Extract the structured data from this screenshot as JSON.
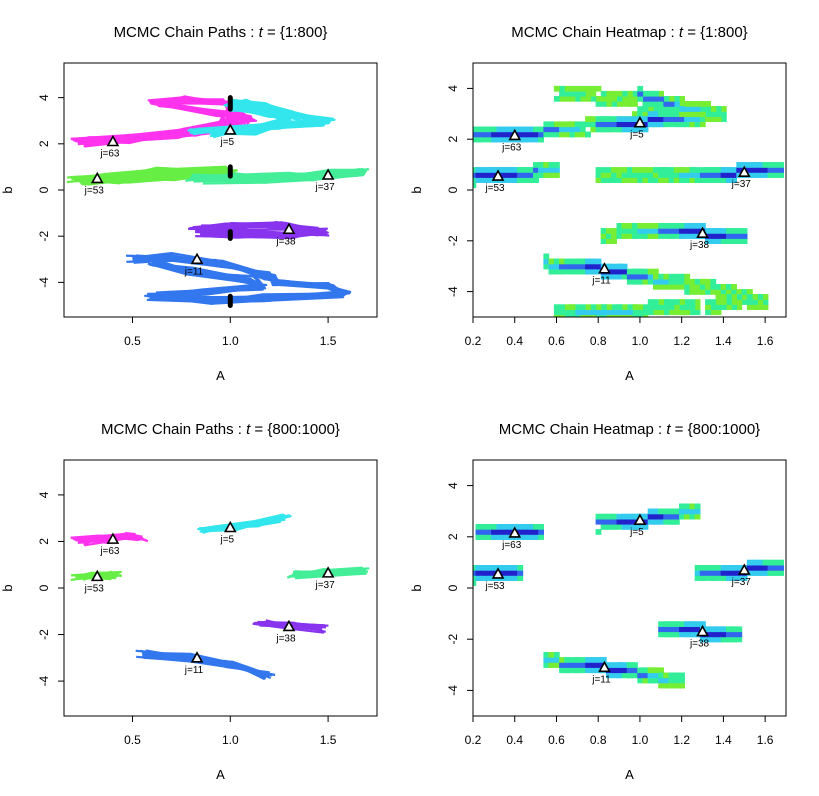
{
  "chart_data": [
    {
      "type": "scatter",
      "title_prefix": "MCMC Chain Paths : ",
      "title_var": "t",
      "title_suffix": " = {1:800}",
      "xlabel": "A",
      "ylabel": "b",
      "xlim": [
        0.15,
        1.75
      ],
      "ylim": [
        -5.5,
        5.5
      ],
      "xticks": [
        0.5,
        1.0,
        1.5
      ],
      "xtick_labels": [
        "0.5",
        "1.0",
        "1.5"
      ],
      "yticks": [
        -4,
        -2,
        0,
        2,
        4
      ],
      "ytick_labels": [
        "-4",
        "-2",
        "0",
        "2",
        "4"
      ],
      "series": [
        {
          "name": "j=63",
          "color": "#ff33ee",
          "true_point": [
            0.4,
            2.1
          ],
          "path": [
            [
              0.22,
              2.05
            ],
            [
              0.45,
              2.2
            ],
            [
              0.8,
              2.5
            ],
            [
              1.05,
              2.9
            ],
            [
              1.1,
              3.15
            ],
            [
              0.9,
              3.35
            ],
            [
              0.6,
              3.8
            ],
            [
              0.8,
              3.9
            ],
            [
              1.0,
              3.75
            ],
            [
              1.0,
              3.15
            ],
            [
              0.95,
              2.7
            ],
            [
              0.7,
              2.4
            ],
            [
              0.3,
              2.15
            ]
          ]
        },
        {
          "name": "j=5",
          "color": "#33e6ee",
          "true_point": [
            1.0,
            2.6
          ],
          "path": [
            [
              0.8,
              2.55
            ],
            [
              1.05,
              2.65
            ],
            [
              1.25,
              2.8
            ],
            [
              1.5,
              2.95
            ],
            [
              1.3,
              3.3
            ],
            [
              1.15,
              3.6
            ],
            [
              1.05,
              3.75
            ],
            [
              1.0,
              3.55
            ],
            [
              1.2,
              3.3
            ],
            [
              1.3,
              3.0
            ],
            [
              1.1,
              2.55
            ],
            [
              0.9,
              2.45
            ]
          ]
        },
        {
          "name": "j=53",
          "color": "#66ee44",
          "true_point": [
            0.32,
            0.5
          ],
          "path": [
            [
              0.2,
              0.45
            ],
            [
              0.4,
              0.55
            ],
            [
              0.65,
              0.8
            ],
            [
              0.95,
              0.9
            ],
            [
              1.0,
              0.7
            ],
            [
              0.7,
              0.6
            ],
            [
              0.45,
              0.45
            ],
            [
              0.25,
              0.4
            ]
          ]
        },
        {
          "name": "j=37",
          "color": "#44ee99",
          "true_point": [
            1.5,
            0.65
          ],
          "path": [
            [
              0.8,
              0.5
            ],
            [
              1.05,
              0.55
            ],
            [
              1.3,
              0.62
            ],
            [
              1.55,
              0.7
            ],
            [
              1.68,
              0.75
            ],
            [
              1.45,
              0.55
            ],
            [
              1.15,
              0.45
            ],
            [
              0.85,
              0.45
            ]
          ]
        },
        {
          "name": "j=38",
          "color": "#8833ee",
          "true_point": [
            1.3,
            -1.7
          ],
          "path": [
            [
              0.82,
              -1.7
            ],
            [
              1.0,
              -1.55
            ],
            [
              1.25,
              -1.55
            ],
            [
              1.48,
              -1.8
            ],
            [
              1.3,
              -1.95
            ],
            [
              1.05,
              -1.9
            ],
            [
              0.85,
              -1.85
            ]
          ]
        },
        {
          "name": "j=11",
          "color": "#3377ee",
          "true_point": [
            0.83,
            -3.0
          ],
          "path": [
            [
              0.5,
              -3.0
            ],
            [
              0.7,
              -2.9
            ],
            [
              0.95,
              -3.2
            ],
            [
              1.2,
              -3.7
            ],
            [
              1.25,
              -4.05
            ],
            [
              1.5,
              -4.2
            ],
            [
              1.58,
              -4.5
            ],
            [
              1.2,
              -4.65
            ],
            [
              0.9,
              -4.8
            ],
            [
              0.6,
              -4.6
            ],
            [
              0.85,
              -4.4
            ],
            [
              1.15,
              -4.15
            ],
            [
              1.1,
              -3.9
            ],
            [
              0.8,
              -3.5
            ],
            [
              0.6,
              -3.15
            ]
          ]
        },
        {
          "name": "",
          "color": "#000000",
          "true_point": null,
          "path": [
            [
              1.0,
              4.0
            ],
            [
              1.0,
              3.5
            ],
            [
              1.0,
              1.0
            ],
            [
              1.0,
              0.6
            ],
            [
              1.0,
              -1.8
            ],
            [
              1.0,
              -2.1
            ],
            [
              1.0,
              -4.6
            ],
            [
              1.0,
              -5.0
            ]
          ]
        }
      ]
    },
    {
      "type": "heatmap",
      "title_prefix": "MCMC Chain Heatmap : ",
      "title_var": "t",
      "title_suffix": " = {1:800}",
      "xlabel": "A",
      "ylabel": "b",
      "xlim": [
        0.2,
        1.7
      ],
      "ylim": [
        -5.0,
        5.0
      ],
      "xticks": [
        0.2,
        0.4,
        0.6,
        0.8,
        1.0,
        1.2,
        1.4,
        1.6
      ],
      "xtick_labels": [
        "0.2",
        "0.4",
        "0.6",
        "0.8",
        "1.0",
        "1.2",
        "1.4",
        "1.6"
      ],
      "yticks": [
        -4,
        -2,
        0,
        2,
        4
      ],
      "ytick_labels": [
        "-4",
        "-2",
        "0",
        "2",
        "4"
      ],
      "palette": [
        "#77ee33",
        "#33ee99",
        "#33ccee",
        "#3366ee",
        "#2222cc"
      ],
      "series": [
        {
          "name": "j=63",
          "true_point": [
            0.4,
            2.15
          ],
          "path": [
            [
              0.2,
              2.1
            ],
            [
              0.45,
              2.2
            ],
            [
              0.75,
              2.5
            ],
            [
              1.0,
              2.75
            ],
            [
              1.3,
              3.2
            ],
            [
              0.95,
              3.55
            ],
            [
              0.6,
              3.9
            ]
          ]
        },
        {
          "name": "j=5",
          "true_point": [
            1.0,
            2.65
          ],
          "path": [
            [
              0.8,
              2.55
            ],
            [
              1.05,
              2.7
            ],
            [
              1.25,
              2.85
            ],
            [
              1.4,
              3.0
            ],
            [
              1.2,
              3.3
            ],
            [
              1.0,
              3.7
            ]
          ]
        },
        {
          "name": "j=53",
          "true_point": [
            0.32,
            0.55
          ],
          "path": [
            [
              0.2,
              0.5
            ],
            [
              0.35,
              0.6
            ],
            [
              0.5,
              0.7
            ],
            [
              0.6,
              0.8
            ]
          ]
        },
        {
          "name": "j=37",
          "true_point": [
            1.5,
            0.7
          ],
          "path": [
            [
              0.8,
              0.6
            ],
            [
              1.1,
              0.62
            ],
            [
              1.35,
              0.68
            ],
            [
              1.55,
              0.72
            ],
            [
              1.68,
              0.75
            ]
          ]
        },
        {
          "name": "j=38",
          "true_point": [
            1.3,
            -1.7
          ],
          "path": [
            [
              0.82,
              -1.75
            ],
            [
              1.05,
              -1.6
            ],
            [
              1.3,
              -1.7
            ],
            [
              1.5,
              -1.85
            ]
          ]
        },
        {
          "name": "j=11",
          "true_point": [
            0.83,
            -3.1
          ],
          "path": [
            [
              0.55,
              -2.9
            ],
            [
              0.75,
              -3.0
            ],
            [
              1.0,
              -3.4
            ],
            [
              1.3,
              -3.8
            ],
            [
              1.6,
              -4.4
            ],
            [
              1.2,
              -4.6
            ],
            [
              0.9,
              -4.8
            ],
            [
              0.6,
              -4.9
            ]
          ]
        }
      ]
    },
    {
      "type": "scatter",
      "title_prefix": "MCMC Chain Paths : ",
      "title_var": "t",
      "title_suffix": " = {800:1000}",
      "xlabel": "A",
      "ylabel": "b",
      "xlim": [
        0.15,
        1.75
      ],
      "ylim": [
        -5.5,
        5.5
      ],
      "xticks": [
        0.5,
        1.0,
        1.5
      ],
      "xtick_labels": [
        "0.5",
        "1.0",
        "1.5"
      ],
      "yticks": [
        -4,
        -2,
        0,
        2,
        4
      ],
      "ytick_labels": [
        "-4",
        "-2",
        "0",
        "2",
        "4"
      ],
      "series": [
        {
          "name": "j=63",
          "color": "#ff33ee",
          "true_point": [
            0.4,
            2.1
          ],
          "path": [
            [
              0.22,
              2.0
            ],
            [
              0.35,
              2.1
            ],
            [
              0.5,
              2.2
            ],
            [
              0.55,
              2.15
            ]
          ]
        },
        {
          "name": "j=5",
          "color": "#33e6ee",
          "true_point": [
            1.0,
            2.6
          ],
          "path": [
            [
              0.85,
              2.5
            ],
            [
              1.0,
              2.6
            ],
            [
              1.15,
              2.8
            ],
            [
              1.28,
              3.0
            ]
          ]
        },
        {
          "name": "j=53",
          "color": "#66ee44",
          "true_point": [
            0.32,
            0.5
          ],
          "path": [
            [
              0.22,
              0.45
            ],
            [
              0.32,
              0.5
            ],
            [
              0.42,
              0.55
            ]
          ]
        },
        {
          "name": "j=37",
          "color": "#44ee99",
          "true_point": [
            1.5,
            0.65
          ],
          "path": [
            [
              1.32,
              0.55
            ],
            [
              1.5,
              0.65
            ],
            [
              1.68,
              0.75
            ]
          ]
        },
        {
          "name": "j=38",
          "color": "#8833ee",
          "true_point": [
            1.3,
            -1.65
          ],
          "path": [
            [
              1.15,
              -1.55
            ],
            [
              1.3,
              -1.6
            ],
            [
              1.47,
              -1.75
            ]
          ]
        },
        {
          "name": "j=11",
          "color": "#3377ee",
          "true_point": [
            0.83,
            -3.0
          ],
          "path": [
            [
              0.55,
              -2.85
            ],
            [
              0.8,
              -3.0
            ],
            [
              1.0,
              -3.3
            ],
            [
              1.2,
              -3.75
            ]
          ]
        }
      ]
    },
    {
      "type": "heatmap",
      "title_prefix": "MCMC Chain Heatmap : ",
      "title_var": "t",
      "title_suffix": " = {800:1000}",
      "xlabel": "A",
      "ylabel": "b",
      "xlim": [
        0.2,
        1.7
      ],
      "ylim": [
        -5.0,
        5.0
      ],
      "xticks": [
        0.2,
        0.4,
        0.6,
        0.8,
        1.0,
        1.2,
        1.4,
        1.6
      ],
      "xtick_labels": [
        "0.2",
        "0.4",
        "0.6",
        "0.8",
        "1.0",
        "1.2",
        "1.4",
        "1.6"
      ],
      "yticks": [
        -4,
        -2,
        0,
        2,
        4
      ],
      "ytick_labels": [
        "-4",
        "-2",
        "0",
        "2",
        "4"
      ],
      "palette": [
        "#77ee33",
        "#33ee99",
        "#33ccee",
        "#3366ee",
        "#2222cc"
      ],
      "series": [
        {
          "name": "j=63",
          "true_point": [
            0.4,
            2.15
          ],
          "path": [
            [
              0.22,
              2.1
            ],
            [
              0.38,
              2.15
            ],
            [
              0.52,
              2.25
            ]
          ]
        },
        {
          "name": "j=5",
          "true_point": [
            1.0,
            2.65
          ],
          "path": [
            [
              0.8,
              2.5
            ],
            [
              1.0,
              2.65
            ],
            [
              1.15,
              2.85
            ],
            [
              1.28,
              3.0
            ]
          ]
        },
        {
          "name": "j=53",
          "true_point": [
            0.32,
            0.55
          ],
          "path": [
            [
              0.2,
              0.5
            ],
            [
              0.32,
              0.55
            ],
            [
              0.42,
              0.6
            ]
          ]
        },
        {
          "name": "j=37",
          "true_point": [
            1.5,
            0.7
          ],
          "path": [
            [
              1.28,
              0.6
            ],
            [
              1.5,
              0.7
            ],
            [
              1.68,
              0.78
            ]
          ]
        },
        {
          "name": "j=38",
          "true_point": [
            1.3,
            -1.7
          ],
          "path": [
            [
              1.1,
              -1.6
            ],
            [
              1.3,
              -1.7
            ],
            [
              1.47,
              -1.8
            ]
          ]
        },
        {
          "name": "j=11",
          "true_point": [
            0.83,
            -3.1
          ],
          "path": [
            [
              0.55,
              -2.85
            ],
            [
              0.8,
              -3.05
            ],
            [
              1.05,
              -3.4
            ],
            [
              1.2,
              -3.7
            ]
          ]
        }
      ]
    }
  ]
}
